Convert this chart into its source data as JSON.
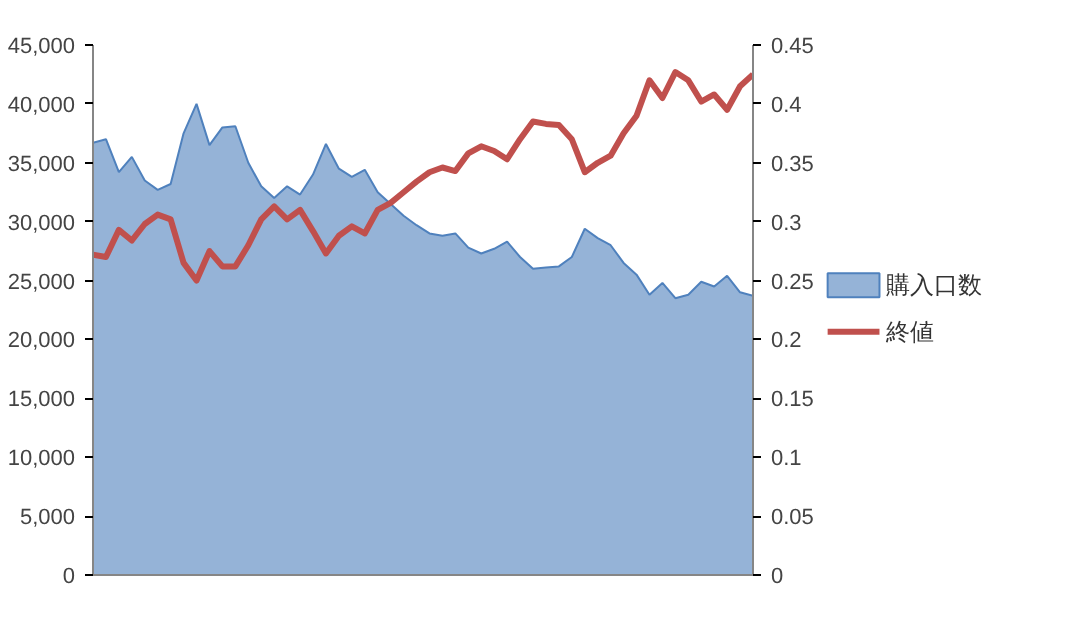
{
  "chart_data": {
    "type": "area",
    "categories": [
      null,
      null,
      null,
      null,
      null,
      null,
      null,
      null,
      null,
      null,
      null,
      null,
      null,
      null,
      null,
      null,
      null,
      null,
      null,
      null,
      null,
      null,
      null,
      null,
      null,
      null,
      null,
      null,
      null,
      null,
      null,
      null,
      null,
      null,
      null,
      null,
      null,
      null,
      null,
      null,
      null,
      null,
      null,
      null,
      null,
      null,
      null,
      null,
      null,
      null,
      null,
      null
    ],
    "series": [
      {
        "name": "購入口数",
        "color": "#95b3d7",
        "values": [
          36700,
          37000,
          34200,
          35500,
          33500,
          32700,
          33200,
          37500,
          40000,
          36500,
          38000,
          38100,
          35000,
          33000,
          32000,
          33000,
          32300,
          34000,
          36600,
          34500,
          33800,
          34400,
          32500,
          31500,
          30500,
          29700,
          29000,
          28800,
          29000,
          27800,
          27300,
          27700,
          28300,
          27000,
          26000,
          26100,
          26200,
          27000,
          29400,
          28600,
          28000,
          26500,
          25500,
          23800,
          24800,
          23500,
          23800,
          24900,
          24500,
          25400,
          24000,
          23700
        ]
      },
      {
        "name": "終値",
        "type": "line",
        "axis": "y2",
        "color": "#c0504d",
        "values": [
          0.272,
          0.27,
          0.293,
          0.284,
          0.298,
          0.306,
          0.302,
          0.265,
          0.25,
          0.275,
          0.262,
          0.262,
          0.28,
          0.302,
          0.313,
          0.302,
          0.31,
          0.292,
          0.273,
          0.288,
          0.296,
          0.29,
          0.31,
          0.316,
          0.325,
          0.334,
          0.342,
          0.346,
          0.343,
          0.358,
          0.364,
          0.36,
          0.353,
          0.37,
          0.385,
          0.383,
          0.382,
          0.37,
          0.342,
          0.35,
          0.356,
          0.375,
          0.39,
          0.42,
          0.405,
          0.427,
          0.42,
          0.402,
          0.408,
          0.395,
          0.415,
          0.425
        ]
      }
    ],
    "ylim": [
      0,
      45000
    ],
    "yticks": [
      0,
      {
        "value": 5000,
        "label": "5,000"
      },
      {
        "value": 10000,
        "label": "10,000"
      },
      {
        "value": 15000,
        "label": "15,000"
      },
      {
        "value": 20000,
        "label": "20,000"
      },
      {
        "value": 25000,
        "label": "25,000"
      },
      {
        "value": 30000,
        "label": "30,000"
      },
      {
        "value": 35000,
        "label": "35,000"
      },
      {
        "value": 40000,
        "label": "40,000"
      },
      {
        "value": 45000,
        "label": "45,000"
      }
    ],
    "y2lim": [
      0,
      0.45
    ],
    "y2ticks": [
      0,
      0.05,
      0.1,
      0.15,
      0.2,
      0.25,
      0.3,
      0.35,
      0.4,
      0.45
    ],
    "grid": false,
    "legend": "right",
    "line_style": "solid",
    "marker": "none"
  }
}
